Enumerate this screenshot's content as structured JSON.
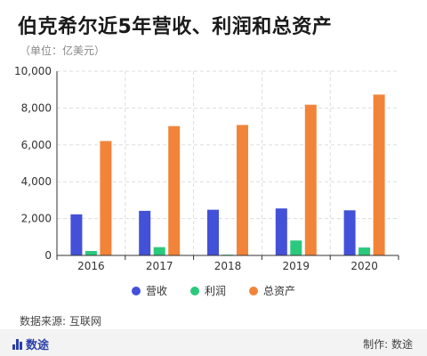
{
  "title": "伯克希尔近5年营收、利润和总资产",
  "unit": "（单位：亿美元）",
  "source": "数据来源: 互联网",
  "footer": {
    "brand": "数途",
    "maker": "制作: 数途"
  },
  "colors": {
    "revenue": "#4350d8",
    "profit": "#2bc97d",
    "assets": "#f2843a",
    "grid": "#dddddd",
    "axis": "#333333"
  },
  "chart_data": {
    "type": "bar",
    "title": "伯克希尔近5年营收、利润和总资产",
    "categories": [
      "2016",
      "2017",
      "2018",
      "2019",
      "2020"
    ],
    "series": [
      {
        "name": "营收",
        "values": [
          2230,
          2420,
          2480,
          2550,
          2450
        ]
      },
      {
        "name": "利润",
        "values": [
          240,
          450,
          40,
          810,
          430
        ]
      },
      {
        "name": "总资产",
        "values": [
          6210,
          7020,
          7080,
          8180,
          8730
        ]
      }
    ],
    "ylim": [
      0,
      10000
    ],
    "yticks": [
      "0",
      "2,000",
      "4,000",
      "6,000",
      "8,000",
      "10,000"
    ],
    "grid": true,
    "legend_position": "bottom"
  }
}
